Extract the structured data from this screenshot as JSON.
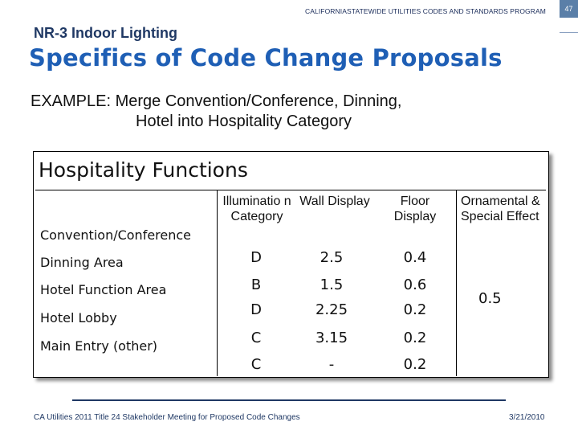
{
  "header": {
    "program": "CALIFORNIASTATEWIDE UTILITIES CODES AND STANDARDS PROGRAM",
    "page_number": "47",
    "section": "NR-3 Indoor Lighting",
    "title": "Specifics of Code Change Proposals"
  },
  "example": {
    "label": "EXAMPLE:",
    "line1": "Merge Convention/Conference, Dinning,",
    "line2": "Hotel into Hospitality Category"
  },
  "table": {
    "title": "Hospitality Functions",
    "headers": [
      "Illuminatio n Category",
      "Wall Display",
      "Floor Display",
      "Ornamental & Special Effect"
    ],
    "row_labels": [
      "Convention/Conference",
      "Dinning Area",
      "Hotel Function Area",
      "Hotel Lobby",
      "Main Entry (other)"
    ],
    "rows": [
      [
        "D",
        "2.5",
        "0.4"
      ],
      [
        "B",
        "1.5",
        "0.6"
      ],
      [
        "D",
        "2.25",
        "0.2"
      ],
      [
        "C",
        "3.15",
        "0.2"
      ],
      [
        "C",
        "-",
        "0.2"
      ]
    ],
    "ornamental_value": "0.5"
  },
  "footer": {
    "left": "CA Utilities 2011 Title 24 Stakeholder Meeting for Proposed Code Changes",
    "right": "3/21/2010"
  }
}
